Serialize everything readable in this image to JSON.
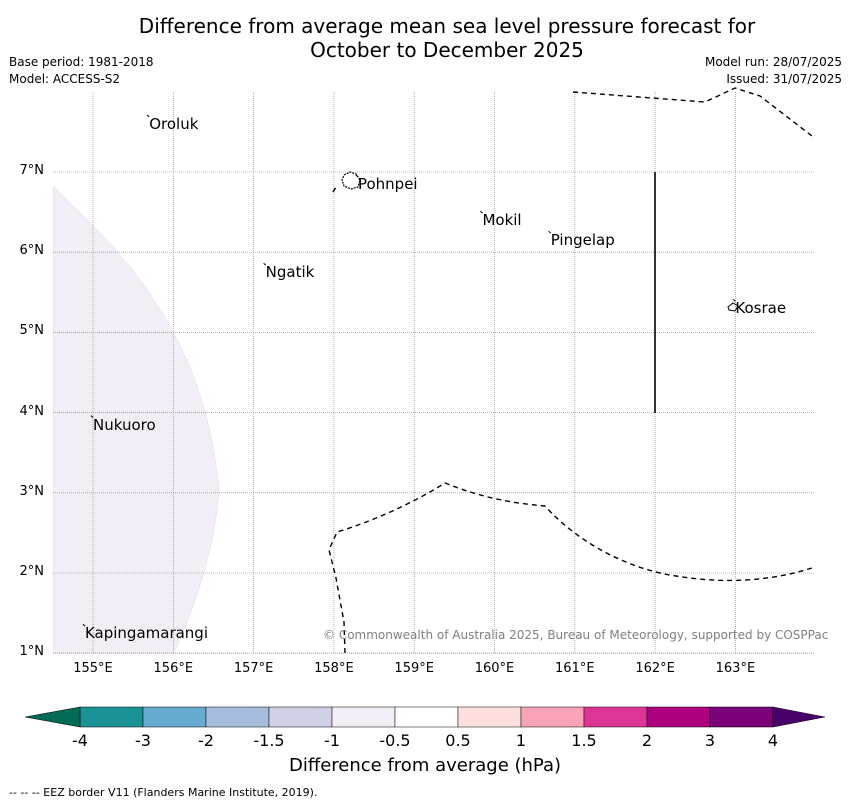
{
  "title": [
    "Difference from average mean sea level pressure forecast for",
    "October to December 2025"
  ],
  "meta_left": [
    "Base period: 1981-2018",
    "Model: ACCESS-S2"
  ],
  "meta_right": [
    "Model run: 28/07/2025",
    "Issued: 31/07/2025"
  ],
  "map": {
    "lat_ticks": [
      "7°N",
      "6°N",
      "5°N",
      "4°N",
      "3°N",
      "2°N",
      "1°N"
    ],
    "lon_ticks": [
      "155°E",
      "156°E",
      "157°E",
      "158°E",
      "159°E",
      "160°E",
      "161°E",
      "162°E",
      "163°E"
    ],
    "places": [
      {
        "name": "Oroluk",
        "lon": 155.7,
        "lat": 7.6
      },
      {
        "name": "Pohnpei",
        "lon": 158.3,
        "lat": 6.85
      },
      {
        "name": "Mokil",
        "lon": 159.85,
        "lat": 6.4
      },
      {
        "name": "Pingelap",
        "lon": 160.7,
        "lat": 6.15
      },
      {
        "name": "Ngatik",
        "lon": 157.15,
        "lat": 5.75
      },
      {
        "name": "Kosrae",
        "lon": 163.0,
        "lat": 5.3
      },
      {
        "name": "Nukuoro",
        "lon": 155.0,
        "lat": 3.85
      },
      {
        "name": "Kapingamarangi",
        "lon": 154.9,
        "lat": 1.25
      }
    ],
    "copyright": "© Commonwealth of Australia 2025, Bureau of Meteorology, supported by COSPPac",
    "colors": {
      "negative_shading": "#f3eef6",
      "eez_line": "#000000",
      "grid": "#808080"
    }
  },
  "colorbar": {
    "ticks": [
      "-4",
      "-3",
      "-2",
      "-1.5",
      "-1",
      "-0.5",
      "0.5",
      "1",
      "1.5",
      "2",
      "3",
      "4"
    ],
    "colors": [
      "#1b9296",
      "#68abd0",
      "#a8bddb",
      "#cfcfe6",
      "#f3eef6",
      "#ffffff",
      "#fde0de",
      "#f9a3b8",
      "#dd3596",
      "#ad017d",
      "#7a0177"
    ],
    "under_color": "#036a55",
    "over_color": "#4a006a",
    "label": "Difference from average (hPa)"
  },
  "footer": "--  --  -- EEZ border V11 (Flanders Marine Institute, 2019)."
}
